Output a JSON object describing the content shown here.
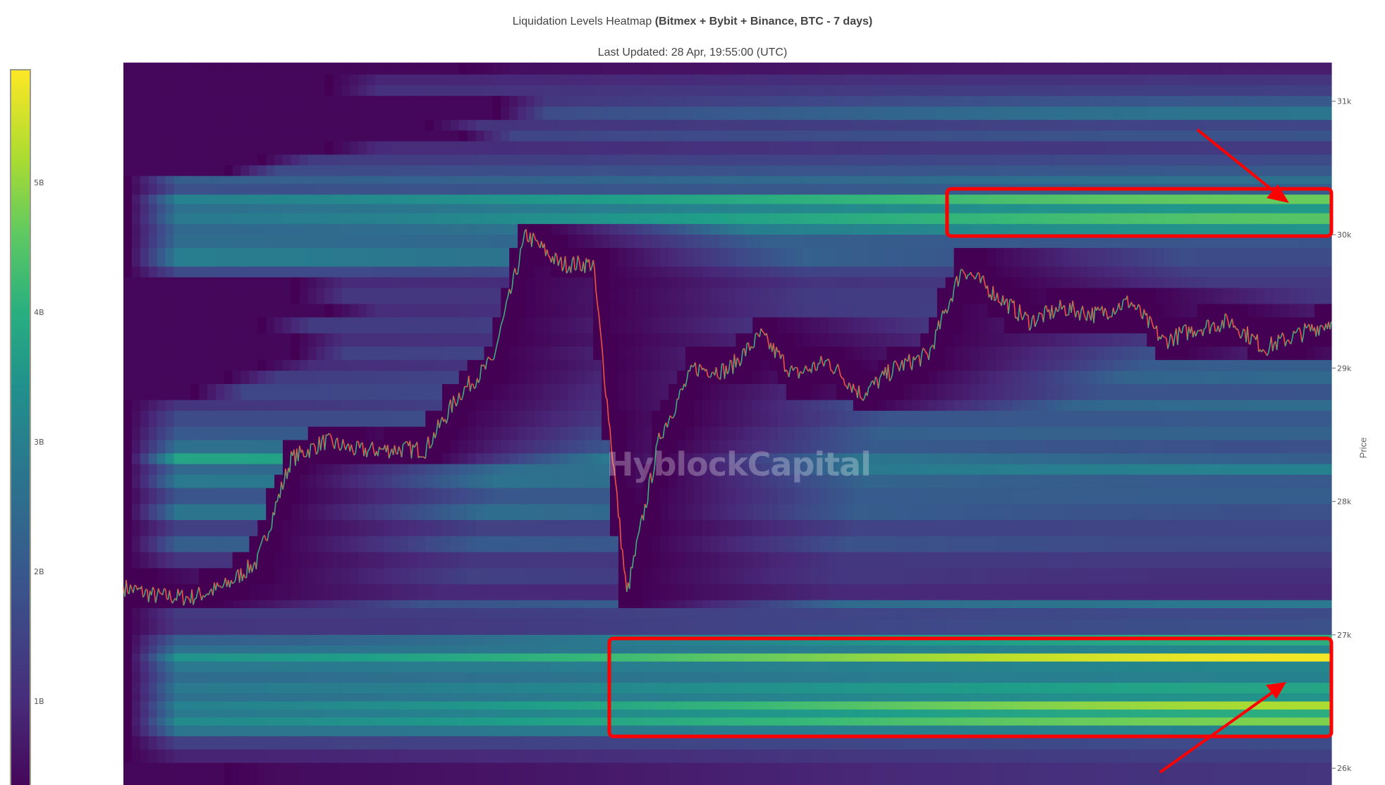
{
  "chart_data": {
    "type": "heatmap",
    "title": "Liquidation Levels Heatmap",
    "title_bold": "(Bitmex + Bybit + Binance, BTC - 7 days)",
    "subtitle": "Last Updated: 28 Apr, 19:55:00 (UTC)",
    "ylabel": "Price",
    "ylim": [
      25870,
      31290
    ],
    "yticks": [
      {
        "value": 31000,
        "label": "31k"
      },
      {
        "value": 30000,
        "label": "30k"
      },
      {
        "value": 29000,
        "label": "29k"
      },
      {
        "value": 28000,
        "label": "28k"
      },
      {
        "value": 27000,
        "label": "27k"
      },
      {
        "value": 26000,
        "label": "26k"
      }
    ],
    "colorscale": "viridis",
    "color_range_B": [
      0.36,
      5.88
    ],
    "colorbar_ticks": [
      {
        "value": 5,
        "label": "5B"
      },
      {
        "value": 4,
        "label": "4B"
      },
      {
        "value": 3,
        "label": "3B"
      },
      {
        "value": 2,
        "label": "2B"
      },
      {
        "value": 1,
        "label": "1B"
      }
    ],
    "watermark": "HyblockCapital",
    "price_series": [
      27358,
      27290,
      27280,
      27358,
      27550,
      28318,
      28450,
      28380,
      28390,
      28390,
      28800,
      29050,
      30000,
      29780,
      29780,
      27300,
      28500,
      29000,
      28980,
      29245,
      28950,
      29050,
      28800,
      29000,
      29100,
      29750,
      29550,
      29350,
      29450,
      29400,
      29500,
      29200,
      29300,
      29350,
      29150,
      29250,
      29350
    ],
    "up_color": "#3fae7e",
    "down_color": "#f0533f",
    "liquidation_bands_columns": [
      "price_low",
      "price_high",
      "value_B_start",
      "value_B_end",
      "first_time_index"
    ],
    "liquidation_bands": [
      [
        31200,
        31290,
        0.5,
        0.8,
        10
      ],
      [
        31120,
        31200,
        0.9,
        1.2,
        6
      ],
      [
        31040,
        31120,
        1.1,
        1.4,
        6
      ],
      [
        30960,
        31040,
        1.0,
        1.9,
        11
      ],
      [
        30860,
        30960,
        1.3,
        2.5,
        11
      ],
      [
        30780,
        30860,
        1.1,
        1.5,
        9
      ],
      [
        30700,
        30780,
        1.4,
        1.8,
        10
      ],
      [
        30600,
        30700,
        1.0,
        1.3,
        6
      ],
      [
        30520,
        30600,
        1.3,
        1.6,
        4
      ],
      [
        30440,
        30520,
        1.6,
        1.9,
        3
      ],
      [
        30380,
        30440,
        2.0,
        2.4,
        0
      ],
      [
        30300,
        30380,
        1.7,
        2.0,
        0
      ],
      [
        30230,
        30300,
        2.8,
        4.6,
        0
      ],
      [
        30160,
        30230,
        2.4,
        3.3,
        0
      ],
      [
        30080,
        30160,
        2.6,
        4.4,
        0
      ],
      [
        30000,
        30080,
        2.2,
        3.2,
        0
      ],
      [
        29900,
        30000,
        2.3,
        1.8,
        0
      ],
      [
        29760,
        29900,
        2.7,
        1.6,
        0
      ],
      [
        29680,
        29760,
        1.6,
        1.4,
        0
      ],
      [
        29600,
        29680,
        1.0,
        1.3,
        5
      ],
      [
        29480,
        29600,
        1.2,
        1.4,
        5
      ],
      [
        29380,
        29480,
        1.0,
        1.5,
        6
      ],
      [
        29260,
        29380,
        1.3,
        1.6,
        4
      ],
      [
        29160,
        29260,
        1.1,
        1.3,
        5
      ],
      [
        29060,
        29160,
        1.4,
        1.7,
        5
      ],
      [
        28980,
        29060,
        1.0,
        2.0,
        4
      ],
      [
        28880,
        28980,
        1.3,
        2.2,
        3
      ],
      [
        28760,
        28880,
        1.5,
        1.8,
        2
      ],
      [
        28680,
        28760,
        1.2,
        2.3,
        0
      ],
      [
        28560,
        28680,
        1.6,
        1.9,
        0
      ],
      [
        28460,
        28560,
        1.9,
        2.1,
        0
      ],
      [
        28360,
        28460,
        2.4,
        1.7,
        0
      ],
      [
        28280,
        28360,
        3.6,
        2.0,
        0
      ],
      [
        28200,
        28280,
        2.2,
        2.8,
        0
      ],
      [
        28100,
        28200,
        2.6,
        1.9,
        0
      ],
      [
        27980,
        28100,
        1.8,
        2.0,
        0
      ],
      [
        27860,
        27980,
        2.5,
        1.7,
        0
      ],
      [
        27740,
        27860,
        1.4,
        1.5,
        0
      ],
      [
        27620,
        27740,
        2.0,
        1.6,
        0
      ],
      [
        27500,
        27620,
        1.2,
        1.3,
        0
      ],
      [
        27380,
        27500,
        1.5,
        1.1,
        0
      ],
      [
        27260,
        27380,
        1.0,
        1.0,
        0
      ],
      [
        27200,
        27260,
        1.6,
        2.6,
        0
      ],
      [
        27120,
        27200,
        1.3,
        1.6,
        0
      ],
      [
        27000,
        27120,
        1.2,
        1.7,
        0
      ],
      [
        26920,
        27000,
        2.0,
        3.8,
        0
      ],
      [
        26860,
        26920,
        2.4,
        2.9,
        0
      ],
      [
        26800,
        26860,
        3.2,
        5.8,
        0
      ],
      [
        26720,
        26800,
        2.6,
        2.9,
        0
      ],
      [
        26640,
        26720,
        2.3,
        2.8,
        0
      ],
      [
        26560,
        26640,
        2.6,
        3.6,
        0
      ],
      [
        26500,
        26560,
        2.4,
        3.2,
        0
      ],
      [
        26440,
        26500,
        2.8,
        5.2,
        0
      ],
      [
        26380,
        26440,
        2.6,
        3.8,
        0
      ],
      [
        26320,
        26380,
        3.0,
        4.8,
        0
      ],
      [
        26240,
        26320,
        2.5,
        2.8,
        0
      ],
      [
        26140,
        26240,
        1.4,
        1.6,
        0
      ],
      [
        26040,
        26140,
        0.9,
        1.4,
        0
      ],
      [
        25870,
        26040,
        0.5,
        1.2,
        3
      ]
    ],
    "annotation_color": "#ff0000",
    "grid": false
  }
}
